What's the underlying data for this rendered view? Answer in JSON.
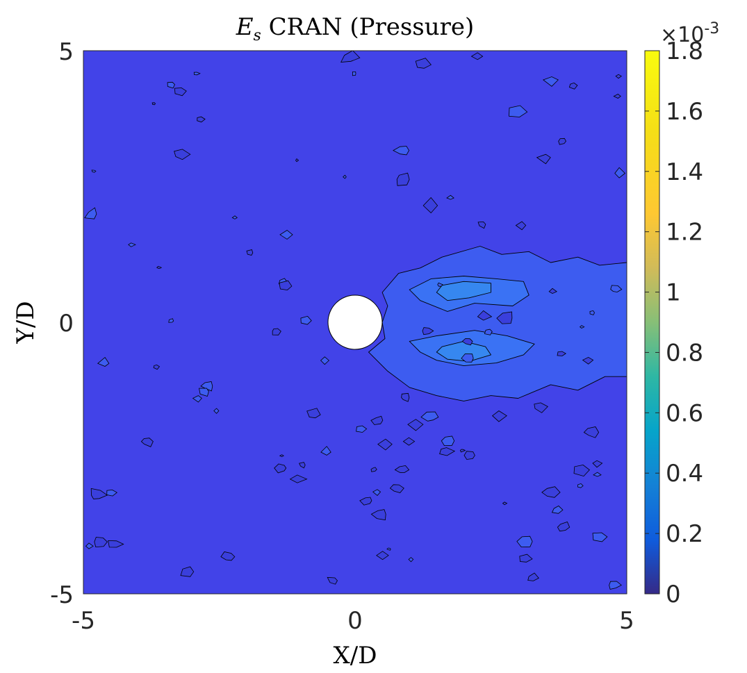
{
  "chart_data": {
    "type": "heatmap",
    "title_symbol": "E",
    "title_subscript": "s",
    "title_text": " CRAN (Pressure)",
    "xlabel": "X/D",
    "ylabel": "Y/D",
    "xlim": [
      -5,
      5
    ],
    "ylim": [
      -5,
      5
    ],
    "x_ticks": [
      "-5",
      "0",
      "5"
    ],
    "y_ticks": [
      "5",
      "0",
      "-5"
    ],
    "colorbar": {
      "range": [
        0,
        0.0018
      ],
      "multiplier_base": "×10",
      "multiplier_exp": "-3",
      "ticks": [
        "1.8",
        "1.6",
        "1.4",
        "1.2",
        "1",
        "0.8",
        "0.6",
        "0.4",
        "0.2",
        "0"
      ],
      "colormap": "parula"
    },
    "background_level": 0.00022,
    "obstacle": {
      "type": "circle",
      "center": [
        0,
        0
      ],
      "diameter": 1,
      "color": "#ffffff"
    },
    "contour_regions": [
      {
        "name": "wake-outer",
        "level": 0.0003,
        "color": "#3d5cf0",
        "points": [
          [
            0.5,
            0.55
          ],
          [
            0.8,
            0.9
          ],
          [
            1.2,
            1.0
          ],
          [
            1.6,
            1.2
          ],
          [
            2.3,
            1.4
          ],
          [
            2.7,
            1.25
          ],
          [
            3.2,
            1.3
          ],
          [
            3.6,
            1.1
          ],
          [
            4.1,
            1.2
          ],
          [
            4.5,
            1.05
          ],
          [
            5.0,
            1.1
          ],
          [
            5.0,
            -1.0
          ],
          [
            4.6,
            -1.0
          ],
          [
            4.1,
            -1.25
          ],
          [
            3.6,
            -1.15
          ],
          [
            3.0,
            -1.4
          ],
          [
            2.5,
            -1.35
          ],
          [
            2.0,
            -1.45
          ],
          [
            1.5,
            -1.35
          ],
          [
            1.0,
            -1.2
          ],
          [
            0.6,
            -0.9
          ],
          [
            0.25,
            -0.55
          ],
          [
            0.55,
            -0.3
          ],
          [
            0.5,
            0.0
          ],
          [
            0.6,
            0.3
          ]
        ]
      },
      {
        "name": "wake-upper-core",
        "level": 0.0004,
        "color": "#3a72f4",
        "points": [
          [
            1.0,
            0.6
          ],
          [
            1.4,
            0.8
          ],
          [
            2.0,
            0.85
          ],
          [
            2.6,
            0.8
          ],
          [
            3.1,
            0.75
          ],
          [
            3.2,
            0.5
          ],
          [
            2.9,
            0.3
          ],
          [
            2.2,
            0.35
          ],
          [
            1.7,
            0.2
          ],
          [
            1.2,
            0.4
          ]
        ]
      },
      {
        "name": "wake-lower-core",
        "level": 0.0004,
        "color": "#3a72f4",
        "points": [
          [
            1.0,
            -0.35
          ],
          [
            1.5,
            -0.25
          ],
          [
            2.2,
            -0.15
          ],
          [
            2.8,
            -0.25
          ],
          [
            3.3,
            -0.4
          ],
          [
            3.1,
            -0.6
          ],
          [
            2.6,
            -0.75
          ],
          [
            2.0,
            -0.8
          ],
          [
            1.5,
            -0.7
          ],
          [
            1.2,
            -0.55
          ]
        ]
      },
      {
        "name": "wake-upper-peak",
        "level": 0.0005,
        "color": "#3687f0",
        "points": [
          [
            1.6,
            0.68
          ],
          [
            2.0,
            0.75
          ],
          [
            2.5,
            0.72
          ],
          [
            2.5,
            0.55
          ],
          [
            2.1,
            0.45
          ],
          [
            1.7,
            0.4
          ],
          [
            1.5,
            0.55
          ]
        ]
      },
      {
        "name": "wake-lower-peak",
        "level": 0.0005,
        "color": "#3687f0",
        "points": [
          [
            1.6,
            -0.45
          ],
          [
            2.0,
            -0.35
          ],
          [
            2.4,
            -0.45
          ],
          [
            2.5,
            -0.6
          ],
          [
            2.1,
            -0.72
          ],
          [
            1.7,
            -0.68
          ],
          [
            1.5,
            -0.55
          ]
        ]
      }
    ]
  }
}
